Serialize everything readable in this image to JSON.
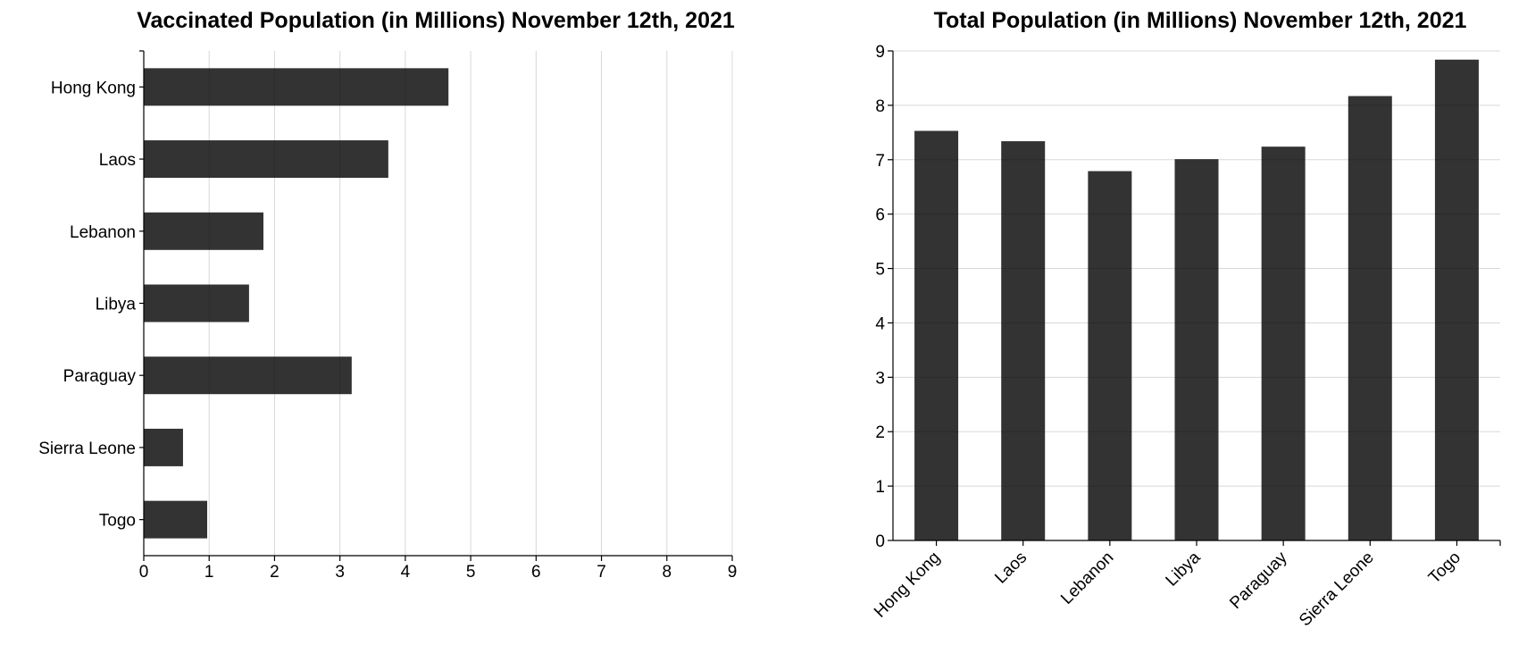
{
  "chart_data": [
    {
      "type": "bar",
      "orientation": "horizontal",
      "title": "Vaccinated Population (in Millions) November 12th, 2021",
      "xlabel": "",
      "ylabel": "",
      "categories": [
        "Hong Kong",
        "Laos",
        "Lebanon",
        "Libya",
        "Paraguay",
        "Sierra Leone",
        "Togo"
      ],
      "values": [
        4.66,
        3.74,
        1.83,
        1.61,
        3.18,
        0.6,
        0.97
      ],
      "xlim": [
        0,
        9
      ],
      "ticks": [
        "0",
        "1",
        "2",
        "3",
        "4",
        "5",
        "6",
        "7",
        "8",
        "9"
      ],
      "grid": true,
      "bar_color": "#333333"
    },
    {
      "type": "bar",
      "orientation": "vertical",
      "title": "Total Population (in Millions) November 12th, 2021",
      "xlabel": "",
      "ylabel": "",
      "categories": [
        "Hong Kong",
        "Laos",
        "Lebanon",
        "Libya",
        "Paraguay",
        "Sierra Leone",
        "Togo"
      ],
      "values": [
        7.53,
        7.34,
        6.79,
        7.01,
        7.24,
        8.17,
        8.84
      ],
      "ylim": [
        0,
        9
      ],
      "ticks": [
        "0",
        "1",
        "2",
        "3",
        "4",
        "5",
        "6",
        "7",
        "8",
        "9"
      ],
      "grid": true,
      "bar_color": "#333333"
    }
  ]
}
